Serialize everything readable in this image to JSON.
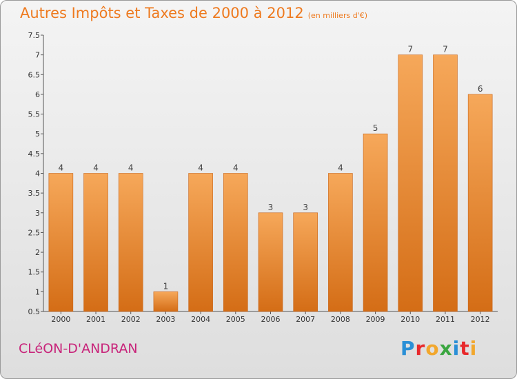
{
  "chart_data": {
    "type": "bar",
    "title": "Autres Impôts et Taxes de 2000 à 2012",
    "subtitle": "(en milliers d'€)",
    "categories": [
      "2000",
      "2001",
      "2002",
      "2003",
      "2004",
      "2005",
      "2006",
      "2007",
      "2008",
      "2009",
      "2010",
      "2011",
      "2012"
    ],
    "values": [
      4,
      4,
      4,
      1,
      4,
      4,
      3,
      3,
      4,
      5,
      7,
      7,
      6
    ],
    "data_labels": [
      "4",
      "4",
      "4",
      "1",
      "4",
      "4",
      "3",
      "3",
      "4",
      "5",
      "7",
      "7",
      "6"
    ],
    "y_ticks": [
      0.5,
      1,
      1.5,
      2,
      2.5,
      3,
      3.5,
      4,
      4.5,
      5,
      5.5,
      6,
      6.5,
      7,
      7.5
    ],
    "y_tick_labels": [
      "0.5",
      "1",
      "1.5",
      "2",
      "2.5",
      "3",
      "3.5",
      "4",
      "4.5",
      "5",
      "5.5",
      "6",
      "6.5",
      "7",
      "7.5"
    ],
    "ylim": [
      0.5,
      7.5
    ],
    "xlabel": "",
    "ylabel": "",
    "grid": false,
    "bar_color": "#ee8a35"
  },
  "footer": {
    "place_name": "CLéON-D'ANDRAN",
    "brand_letters": [
      "P",
      "r",
      "o",
      "x",
      "i",
      "t",
      "i"
    ],
    "brand_colors": [
      "#2a8fd6",
      "#e8292c",
      "#f2a72d",
      "#3aa640",
      "#2a8fd6",
      "#e8292c",
      "#f2a72d"
    ]
  }
}
